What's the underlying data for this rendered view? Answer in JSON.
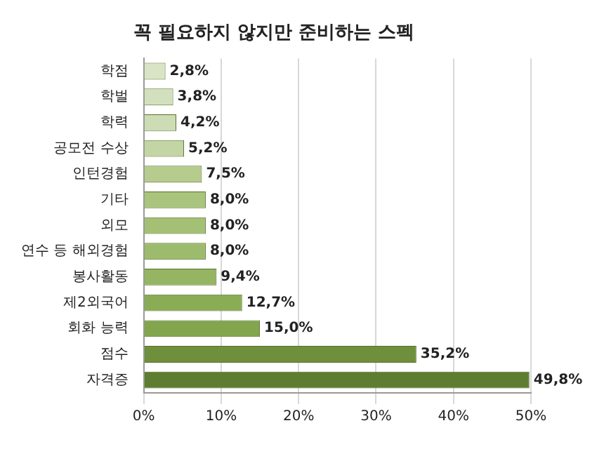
{
  "chart_data": {
    "type": "bar",
    "orientation": "horizontal",
    "title": "꼭 필요하지 않지만 준비하는 스펙",
    "categories": [
      "학점",
      "학벌",
      "학력",
      "공모전 수상",
      "인턴경험",
      "기타",
      "외모",
      "연수 등 해외경험",
      "봉사활동",
      "제2외국어",
      "회화 능력",
      "점수",
      "자격증"
    ],
    "values": [
      2.8,
      3.8,
      4.2,
      5.2,
      7.5,
      8.0,
      8.0,
      8.0,
      9.4,
      12.7,
      15.0,
      35.2,
      49.8
    ],
    "value_labels": [
      "2,8%",
      "3,8%",
      "4,2%",
      "5,2%",
      "7,5%",
      "8,0%",
      "8,0%",
      "8,0%",
      "9,4%",
      "12,7%",
      "15,0%",
      "35,2%",
      "49,8%"
    ],
    "colors": [
      "#d9e4c6",
      "#d3e0bd",
      "#cddcb4",
      "#c3d5a4",
      "#b5cc8e",
      "#a9c47c",
      "#a3c074",
      "#9dbb6c",
      "#95b562",
      "#8aac55",
      "#82a54d",
      "#6f8f3c",
      "#5f7d30"
    ],
    "xlim": [
      0,
      50
    ],
    "xticks": [
      {
        "value": 0,
        "label": "0%"
      },
      {
        "value": 10,
        "label": "10%"
      },
      {
        "value": 20,
        "label": "20%"
      },
      {
        "value": 30,
        "label": "30%"
      },
      {
        "value": 40,
        "label": "40%"
      },
      {
        "value": 50,
        "label": "50%"
      }
    ],
    "grid": "x",
    "legend": false
  }
}
